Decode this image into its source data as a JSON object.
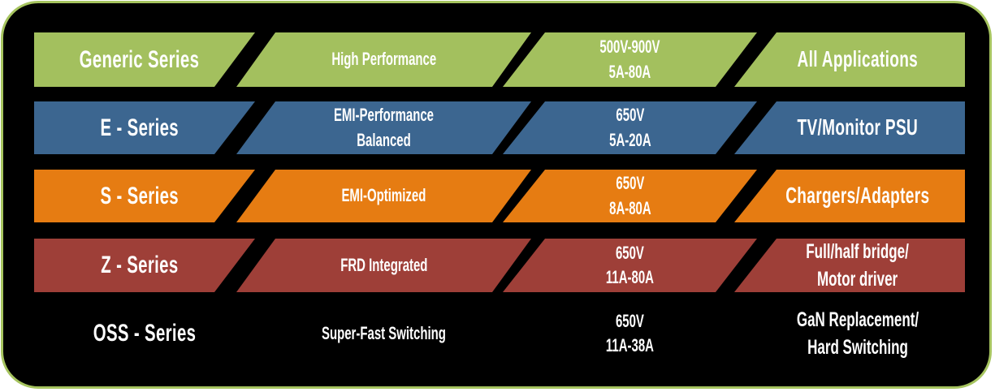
{
  "panel": {
    "background": "#000000",
    "border_color": "#a6c45f",
    "text_color": "#ffffff"
  },
  "rows": [
    {
      "id": "generic-series",
      "color": "#a3c05e",
      "series": "Generic Series",
      "feature": [
        "High Performance"
      ],
      "ratings": [
        "500V-900V",
        "5A-80A"
      ],
      "applications": [
        "All Applications"
      ]
    },
    {
      "id": "e-series",
      "color": "#3c6690",
      "series": "E - Series",
      "feature": [
        "EMI-Performance",
        "Balanced"
      ],
      "ratings": [
        "650V",
        "5A-20A"
      ],
      "applications": [
        "TV/Monitor PSU"
      ]
    },
    {
      "id": "s-series",
      "color": "#e67c12",
      "series": "S - Series",
      "feature": [
        "EMI-Optimized"
      ],
      "ratings": [
        "650V",
        "8A-80A"
      ],
      "applications": [
        "Chargers/Adapters"
      ]
    },
    {
      "id": "z-series",
      "color": "#9e3f38",
      "series": "Z - Series",
      "feature": [
        "FRD Integrated"
      ],
      "ratings": [
        "650V",
        "11A-80A"
      ],
      "applications": [
        "Full/half bridge/",
        "Motor driver"
      ]
    },
    {
      "id": "oss-series",
      "color": "",
      "series": "OSS - Series",
      "feature": [
        "Super-Fast Switching"
      ],
      "ratings": [
        "650V",
        "11A-38A"
      ],
      "applications": [
        "GaN Replacement/",
        "Hard Switching"
      ]
    }
  ]
}
